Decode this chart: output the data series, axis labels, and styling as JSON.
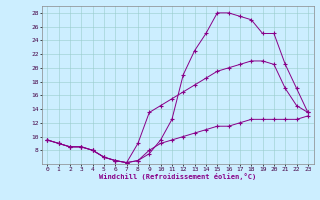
{
  "xlabel": "Windchill (Refroidissement éolien,°C)",
  "background_color": "#cceeff",
  "line_color": "#880088",
  "xlim": [
    -0.5,
    23.5
  ],
  "ylim": [
    6,
    29
  ],
  "yticks": [
    8,
    10,
    12,
    14,
    16,
    18,
    20,
    22,
    24,
    26,
    28
  ],
  "xticks": [
    0,
    1,
    2,
    3,
    4,
    5,
    6,
    7,
    8,
    9,
    10,
    11,
    12,
    13,
    14,
    15,
    16,
    17,
    18,
    19,
    20,
    21,
    22,
    23
  ],
  "curve1_x": [
    0,
    1,
    2,
    3,
    4,
    5,
    6,
    7,
    8,
    9,
    10,
    11,
    12,
    13,
    14,
    15,
    16,
    17,
    18,
    19,
    20,
    21,
    22,
    23
  ],
  "curve1_y": [
    9.5,
    9.0,
    8.5,
    8.5,
    8.0,
    7.0,
    6.5,
    6.2,
    6.5,
    7.5,
    9.5,
    12.5,
    19.0,
    22.5,
    25.0,
    28.0,
    28.0,
    27.5,
    27.0,
    25.0,
    25.0,
    20.5,
    17.0,
    13.5
  ],
  "curve2_x": [
    0,
    1,
    2,
    3,
    4,
    5,
    6,
    7,
    8,
    9,
    10,
    11,
    12,
    13,
    14,
    15,
    16,
    17,
    18,
    19,
    20,
    21,
    22,
    23
  ],
  "curve2_y": [
    9.5,
    9.0,
    8.5,
    8.5,
    8.0,
    7.0,
    6.5,
    6.2,
    9.0,
    13.5,
    14.5,
    15.5,
    16.5,
    17.5,
    18.5,
    19.5,
    20.0,
    20.5,
    21.0,
    21.0,
    20.5,
    17.0,
    14.5,
    13.5
  ],
  "curve3_x": [
    0,
    1,
    2,
    3,
    4,
    5,
    6,
    7,
    8,
    9,
    10,
    11,
    12,
    13,
    14,
    15,
    16,
    17,
    18,
    19,
    20,
    21,
    22,
    23
  ],
  "curve3_y": [
    9.5,
    9.0,
    8.5,
    8.5,
    8.0,
    7.0,
    6.5,
    6.2,
    6.5,
    8.0,
    9.0,
    9.5,
    10.0,
    10.5,
    11.0,
    11.5,
    11.5,
    12.0,
    12.5,
    12.5,
    12.5,
    12.5,
    12.5,
    13.0
  ]
}
